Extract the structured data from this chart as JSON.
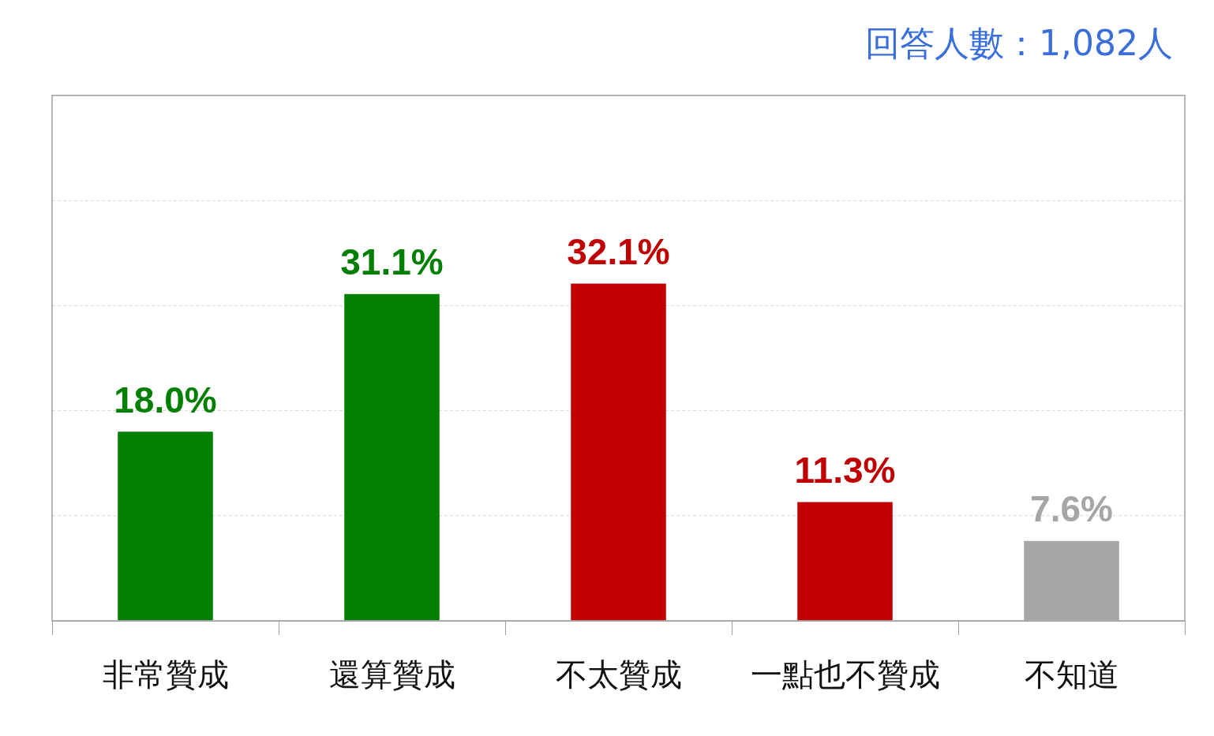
{
  "chart_data": {
    "type": "bar",
    "annotations": [
      "回答人數：1,082人"
    ],
    "categories": [
      "非常贊成",
      "還算贊成",
      "不太贊成",
      "一點也不贊成",
      "不知道"
    ],
    "values": [
      18.0,
      31.1,
      32.1,
      11.3,
      7.6
    ],
    "colors": [
      "#007f00",
      "#007f00",
      "#c00000",
      "#c00000",
      "#a6a6a6"
    ],
    "value_labels": [
      "18.0%",
      "31.1%",
      "32.1%",
      "11.3%",
      "7.6%"
    ],
    "ylim": [
      0,
      50
    ],
    "yticks": [
      {
        "value": 0,
        "label": null
      },
      {
        "value": 10,
        "label": null
      },
      {
        "value": 20,
        "label": null
      },
      {
        "value": 30,
        "label": null
      },
      {
        "value": 40,
        "label": null
      },
      {
        "value": 50,
        "label": null
      }
    ],
    "tick_labels": "x",
    "grid": "y"
  }
}
